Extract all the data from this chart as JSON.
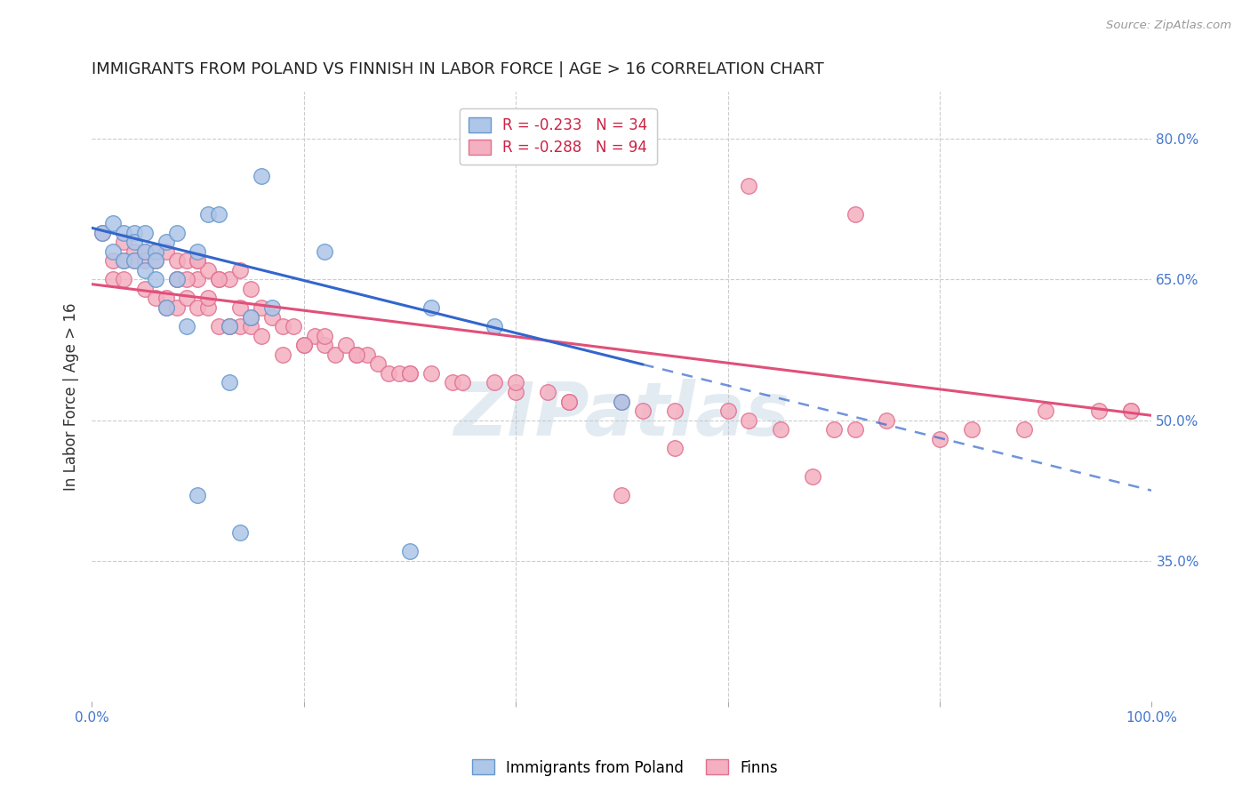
{
  "title": "IMMIGRANTS FROM POLAND VS FINNISH IN LABOR FORCE | AGE > 16 CORRELATION CHART",
  "source": "Source: ZipAtlas.com",
  "ylabel": "In Labor Force | Age > 16",
  "x_min": 0.0,
  "x_max": 1.0,
  "y_min": 0.2,
  "y_max": 0.85,
  "y_ticks_right": [
    0.35,
    0.5,
    0.65,
    0.8
  ],
  "grid_color": "#cccccc",
  "background_color": "#ffffff",
  "poland_color": "#aec6e8",
  "poland_edge_color": "#6699cc",
  "finland_color": "#f4afc0",
  "finland_edge_color": "#e07090",
  "legend_poland_label": "R = -0.233   N = 34",
  "legend_finland_label": "R = -0.288   N = 94",
  "legend_bottom_poland": "Immigrants from Poland",
  "legend_bottom_finland": "Finns",
  "poland_line_color": "#3366cc",
  "finland_line_color": "#e0507a",
  "title_fontsize": 13,
  "label_fontsize": 12,
  "tick_fontsize": 11,
  "legend_fontsize": 12,
  "watermark_text": "ZIPatlas",
  "watermark_color": "#b0c8da",
  "watermark_alpha": 0.35,
  "poland_x": [
    0.01,
    0.02,
    0.02,
    0.03,
    0.03,
    0.04,
    0.04,
    0.04,
    0.05,
    0.05,
    0.05,
    0.06,
    0.06,
    0.06,
    0.07,
    0.07,
    0.08,
    0.08,
    0.09,
    0.1,
    0.11,
    0.12,
    0.13,
    0.14,
    0.15,
    0.16,
    0.17,
    0.22,
    0.3,
    0.32,
    0.38,
    0.5,
    0.1,
    0.13
  ],
  "poland_y": [
    0.7,
    0.71,
    0.68,
    0.7,
    0.67,
    0.7,
    0.69,
    0.67,
    0.7,
    0.68,
    0.66,
    0.68,
    0.67,
    0.65,
    0.69,
    0.62,
    0.7,
    0.65,
    0.6,
    0.68,
    0.72,
    0.72,
    0.6,
    0.38,
    0.61,
    0.76,
    0.62,
    0.68,
    0.36,
    0.62,
    0.6,
    0.52,
    0.42,
    0.54
  ],
  "finland_x": [
    0.01,
    0.02,
    0.02,
    0.03,
    0.03,
    0.03,
    0.04,
    0.04,
    0.05,
    0.05,
    0.05,
    0.06,
    0.06,
    0.06,
    0.07,
    0.07,
    0.07,
    0.08,
    0.08,
    0.08,
    0.09,
    0.09,
    0.1,
    0.1,
    0.1,
    0.11,
    0.11,
    0.12,
    0.12,
    0.13,
    0.13,
    0.14,
    0.14,
    0.15,
    0.15,
    0.16,
    0.16,
    0.17,
    0.18,
    0.18,
    0.19,
    0.2,
    0.21,
    0.22,
    0.23,
    0.24,
    0.25,
    0.26,
    0.27,
    0.28,
    0.29,
    0.3,
    0.32,
    0.34,
    0.35,
    0.38,
    0.4,
    0.43,
    0.45,
    0.5,
    0.52,
    0.55,
    0.6,
    0.62,
    0.65,
    0.7,
    0.72,
    0.75,
    0.8,
    0.83,
    0.88,
    0.9,
    0.95,
    0.98,
    0.5,
    0.62,
    0.72,
    0.98,
    0.55,
    0.68,
    0.3,
    0.4,
    0.45,
    0.2,
    0.22,
    0.25,
    0.1,
    0.12,
    0.15,
    0.08,
    0.09,
    0.11,
    0.13,
    0.14
  ],
  "finland_y": [
    0.7,
    0.67,
    0.65,
    0.69,
    0.67,
    0.65,
    0.68,
    0.67,
    0.68,
    0.67,
    0.64,
    0.68,
    0.67,
    0.63,
    0.68,
    0.63,
    0.62,
    0.67,
    0.65,
    0.62,
    0.67,
    0.63,
    0.67,
    0.65,
    0.62,
    0.66,
    0.62,
    0.65,
    0.6,
    0.65,
    0.6,
    0.66,
    0.6,
    0.64,
    0.6,
    0.62,
    0.59,
    0.61,
    0.6,
    0.57,
    0.6,
    0.58,
    0.59,
    0.58,
    0.57,
    0.58,
    0.57,
    0.57,
    0.56,
    0.55,
    0.55,
    0.55,
    0.55,
    0.54,
    0.54,
    0.54,
    0.53,
    0.53,
    0.52,
    0.52,
    0.51,
    0.51,
    0.51,
    0.5,
    0.49,
    0.49,
    0.49,
    0.5,
    0.48,
    0.49,
    0.49,
    0.51,
    0.51,
    0.51,
    0.42,
    0.75,
    0.72,
    0.51,
    0.47,
    0.44,
    0.55,
    0.54,
    0.52,
    0.58,
    0.59,
    0.57,
    0.67,
    0.65,
    0.61,
    0.65,
    0.65,
    0.63,
    0.6,
    0.62
  ],
  "finland_line_x0": 0.0,
  "finland_line_y0": 0.645,
  "finland_line_x1": 1.0,
  "finland_line_y1": 0.505,
  "poland_line_x0": 0.0,
  "poland_line_y0": 0.705,
  "poland_line_x1": 1.0,
  "poland_line_y1": 0.425
}
